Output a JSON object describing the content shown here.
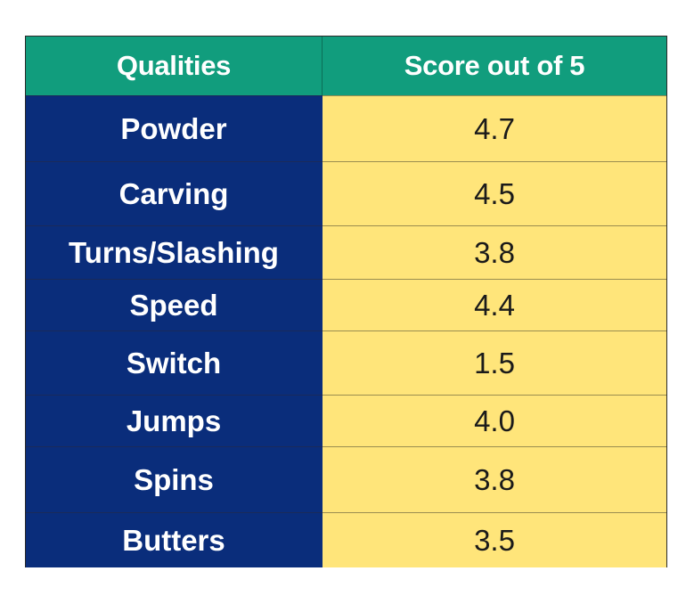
{
  "chart_data": {
    "type": "table",
    "columns": [
      "Qualities",
      "Score out of 5"
    ],
    "rows": [
      {
        "quality": "Powder",
        "score": "4.7"
      },
      {
        "quality": "Carving",
        "score": "4.5"
      },
      {
        "quality": "Turns/Slashing",
        "score": "3.8"
      },
      {
        "quality": "Speed",
        "score": "4.4"
      },
      {
        "quality": "Switch",
        "score": "1.5"
      },
      {
        "quality": "Jumps",
        "score": "4.0"
      },
      {
        "quality": "Spins",
        "score": "3.8"
      },
      {
        "quality": "Butters",
        "score": "3.5"
      }
    ]
  },
  "colors": {
    "header_bg": "#119d7d",
    "quality_bg": "#0a2d7b",
    "score_bg": "#ffe57a"
  }
}
